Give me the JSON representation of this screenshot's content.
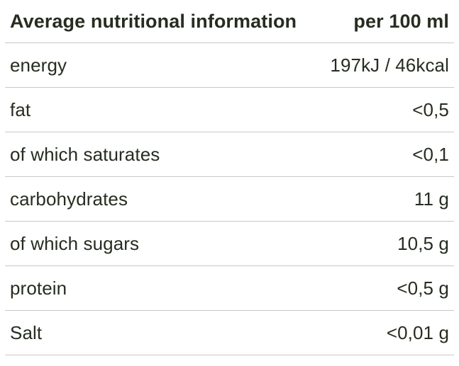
{
  "table": {
    "title": "Average nutritional information",
    "colors": {
      "text": "#262d20",
      "divider": "#c8c8c8",
      "background": "#ffffff"
    },
    "header": {
      "label": "Average nutritional information",
      "value": "per 100 ml"
    },
    "rows": [
      {
        "label": "energy",
        "value": "197kJ / 46kcal"
      },
      {
        "label": "fat",
        "value": "<0,5"
      },
      {
        "label": "of which saturates",
        "value": "<0,1"
      },
      {
        "label": "carbohydrates",
        "value": "11 g"
      },
      {
        "label": "of which sugars",
        "value": "10,5 g"
      },
      {
        "label": "protein",
        "value": "<0,5 g"
      },
      {
        "label": "Salt",
        "value": "<0,01 g"
      }
    ]
  }
}
